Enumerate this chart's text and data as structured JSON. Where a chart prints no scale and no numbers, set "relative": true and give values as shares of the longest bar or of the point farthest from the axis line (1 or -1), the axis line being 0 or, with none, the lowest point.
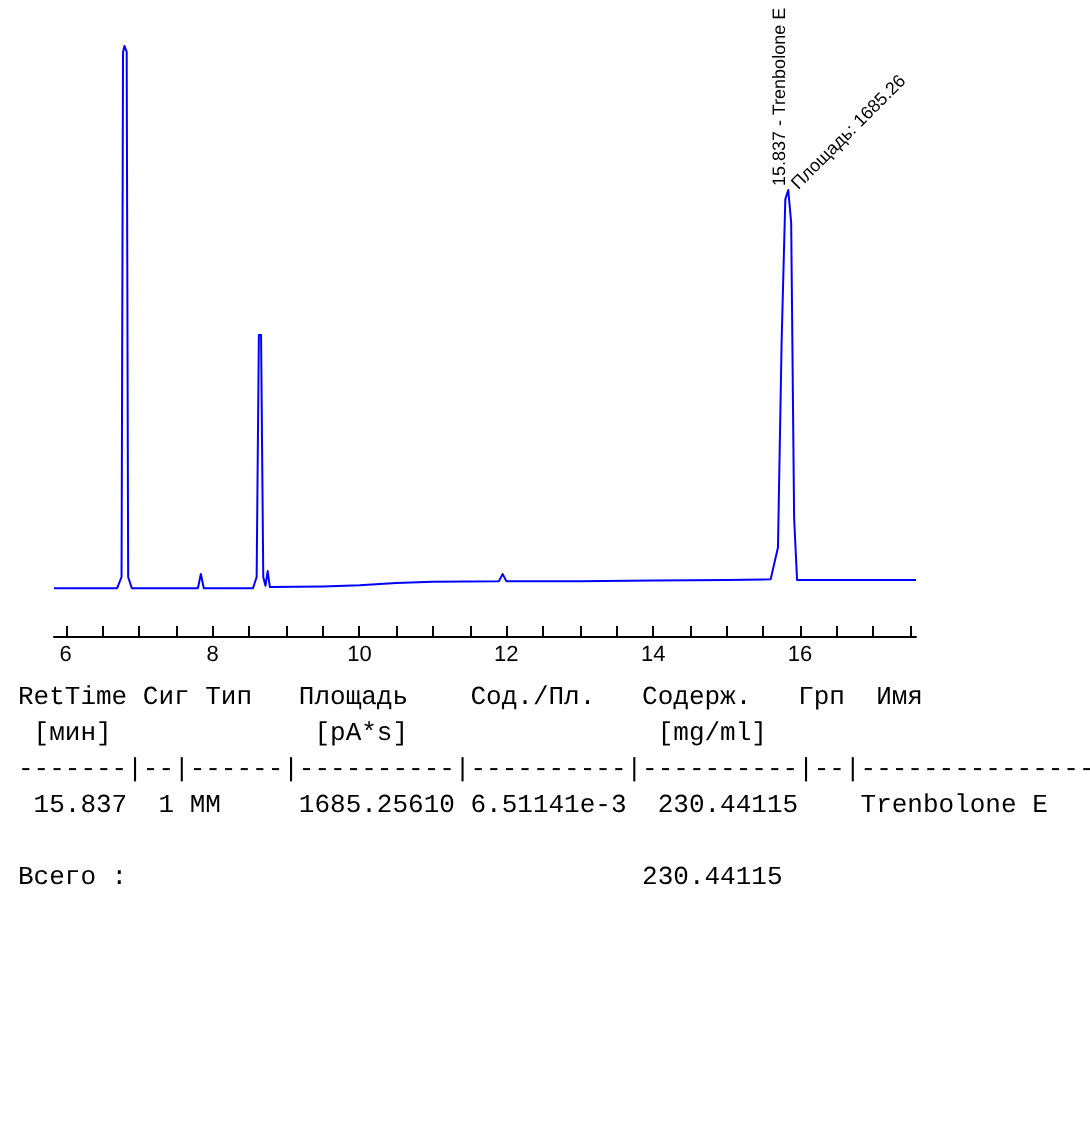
{
  "chart_data": {
    "type": "line",
    "relative": true,
    "marker": "none",
    "grid": false,
    "tick_labels": "x",
    "xlim": [
      5.84,
      17.58
    ],
    "xticks": [
      {
        "value": 6,
        "label": "6"
      },
      {
        "value": 6.5,
        "label": null
      },
      {
        "value": 7,
        "label": null
      },
      {
        "value": 7.5,
        "label": null
      },
      {
        "value": 8,
        "label": "8"
      },
      {
        "value": 8.5,
        "label": null
      },
      {
        "value": 9,
        "label": null
      },
      {
        "value": 9.5,
        "label": null
      },
      {
        "value": 10,
        "label": "10"
      },
      {
        "value": 10.5,
        "label": null
      },
      {
        "value": 11,
        "label": null
      },
      {
        "value": 11.5,
        "label": null
      },
      {
        "value": 12,
        "label": "12"
      },
      {
        "value": 12.5,
        "label": null
      },
      {
        "value": 13,
        "label": null
      },
      {
        "value": 13.5,
        "label": null
      },
      {
        "value": 14,
        "label": "14"
      },
      {
        "value": 14.5,
        "label": null
      },
      {
        "value": 15,
        "label": null
      },
      {
        "value": 15.5,
        "label": null
      },
      {
        "value": 16,
        "label": "16"
      },
      {
        "value": 16.5,
        "label": null
      },
      {
        "value": 17,
        "label": null
      },
      {
        "value": 17.5,
        "label": null
      }
    ],
    "series": [
      {
        "color": "#0000ff",
        "x": [
          5.84,
          6.7,
          6.76,
          6.78,
          6.8,
          6.83,
          6.85,
          6.9,
          7.8,
          7.84,
          7.88,
          8.55,
          8.6,
          8.63,
          8.66,
          8.69,
          8.72,
          8.75,
          8.78,
          9.5,
          10,
          10.5,
          11,
          11.9,
          11.95,
          12,
          13,
          14,
          15,
          15.6,
          15.7,
          15.75,
          15.8,
          15.84,
          15.88,
          15.92,
          15.96,
          16.5,
          17.58
        ],
        "values": [
          0.081,
          0.081,
          0.1,
          0.99,
          1.0,
          0.99,
          0.1,
          0.081,
          0.081,
          0.105,
          0.081,
          0.081,
          0.1,
          0.51,
          0.51,
          0.1,
          0.085,
          0.11,
          0.083,
          0.084,
          0.086,
          0.09,
          0.092,
          0.093,
          0.105,
          0.093,
          0.093,
          0.094,
          0.095,
          0.096,
          0.15,
          0.5,
          0.74,
          0.756,
          0.7,
          0.2,
          0.095,
          0.095,
          0.095
        ]
      }
    ],
    "annotations": [
      {
        "text": "15.837 - Trenbolone E",
        "x": 15.837,
        "y": 0.756
      },
      {
        "text": "Площадь: 1685.26",
        "x": 15.837,
        "y": 0.756
      },
      "RetTime Сиг Тип   Площадь    Сод./Пл.   Содерж.   Грп  Имя",
      " [мин]             [pA*s]                [mg/ml]",
      "-------|--|------|----------|----------|----------|--|---------------",
      " 15.837  1 MM     1685.25610 6.51141e-3  230.44115    Trenbolone E",
      "Всего :                                 230.44115"
    ]
  }
}
